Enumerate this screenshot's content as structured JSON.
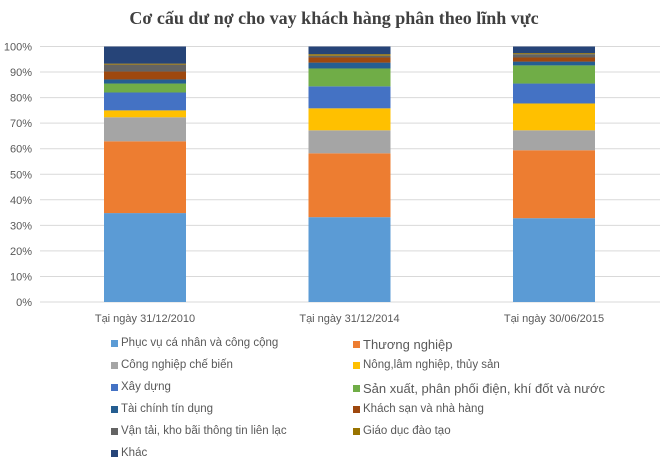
{
  "chart_data": {
    "type": "bar",
    "stacked": "percent",
    "title": "Cơ cấu dư nợ cho vay khách hàng phân theo lĩnh vực",
    "xlabel": "",
    "ylabel": "",
    "ylim": [
      0,
      100
    ],
    "yticks": [
      "0%",
      "10%",
      "20%",
      "30%",
      "40%",
      "50%",
      "60%",
      "70%",
      "80%",
      "90%",
      "100%"
    ],
    "grid": true,
    "legend_position": "bottom",
    "categories": [
      "Tại ngày 31/12/2010",
      "Tại ngày 31/12/2014",
      "Tại ngày 30/06/2015"
    ],
    "series": [
      {
        "name": "Phục vụ cá nhân và công cộng",
        "color": "#5B9BD5",
        "values": [
          34.8,
          33.2,
          32.8
        ]
      },
      {
        "name": "Thương nghiệp",
        "color": "#ED7D31",
        "values": [
          28.1,
          25.0,
          26.6
        ]
      },
      {
        "name": "Công nghiệp chế biến",
        "color": "#A5A5A5",
        "values": [
          9.4,
          9.0,
          7.8
        ]
      },
      {
        "name": "Nông,lâm nghiệp, thủy sản",
        "color": "#FFC000",
        "values": [
          2.7,
          8.6,
          10.5
        ]
      },
      {
        "name": "Xây dựng",
        "color": "#4472C4",
        "values": [
          7.0,
          8.6,
          7.8
        ]
      },
      {
        "name": "Sản xuất, phân phối điện, khí đốt và nước",
        "color": "#70AD47",
        "values": [
          3.5,
          7.0,
          7.1
        ]
      },
      {
        "name": "Tài chính tín dụng",
        "color": "#255E91",
        "values": [
          1.6,
          2.3,
          1.5
        ]
      },
      {
        "name": "Khách sạn và nhà hàng",
        "color": "#9E480E",
        "values": [
          3.1,
          2.0,
          1.6
        ]
      },
      {
        "name": "Vận tải, kho bãi thông tin liên lạc",
        "color": "#636363",
        "values": [
          2.7,
          0.7,
          1.3
        ]
      },
      {
        "name": "Giáo dục đào tạo",
        "color": "#997300",
        "values": [
          0.4,
          0.6,
          0.4
        ]
      },
      {
        "name": "Khác",
        "color": "#264478",
        "values": [
          6.7,
          3.0,
          2.6
        ]
      }
    ]
  }
}
